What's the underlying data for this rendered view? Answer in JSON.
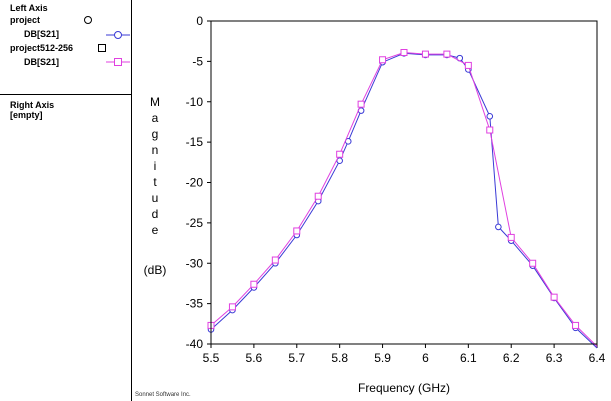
{
  "legend": {
    "left_axis_title": "Left Axis",
    "right_axis_title": "Right Axis",
    "right_axis_status": "[empty]",
    "entries": [
      {
        "project": "project",
        "trace": "DB[S21]",
        "marker": "circle",
        "color": "#3a3ad6"
      },
      {
        "project": "project512-256",
        "trace": "DB[S21]",
        "marker": "square",
        "color": "#e040e0"
      }
    ]
  },
  "credit": "Sonnet Software Inc.",
  "chart_data": {
    "type": "line",
    "xlabel": "Frequency (GHz)",
    "ylabel_letters": [
      "M",
      "a",
      "g",
      "n",
      "i",
      "t",
      "u",
      "d",
      "e"
    ],
    "ylabel_unit": "(dB)",
    "xlim": [
      5.5,
      6.4
    ],
    "ylim": [
      -40,
      0
    ],
    "x_ticks": [
      "5.5",
      "5.6",
      "5.7",
      "5.8",
      "5.9",
      "6",
      "6.1",
      "6.2",
      "6.3",
      "6.4"
    ],
    "y_ticks": [
      "0",
      "-5",
      "-10",
      "-15",
      "-20",
      "-25",
      "-30",
      "-35",
      "-40"
    ],
    "grid": false,
    "series": [
      {
        "name": "DB[S21]",
        "color": "#3a3ad6",
        "marker": "circle",
        "x": [
          5.5,
          5.55,
          5.6,
          5.65,
          5.7,
          5.75,
          5.8,
          5.82,
          5.85,
          5.9,
          5.95,
          6.0,
          6.05,
          6.08,
          6.1,
          6.15,
          6.17,
          6.2,
          6.25,
          6.3,
          6.35,
          6.4
        ],
        "y": [
          -38.2,
          -35.8,
          -33.0,
          -30.0,
          -26.5,
          -22.3,
          -17.3,
          -14.9,
          -11.1,
          -5.1,
          -4.0,
          -4.2,
          -4.2,
          -4.6,
          -6.0,
          -11.8,
          -25.5,
          -27.2,
          -30.3,
          -34.3,
          -38.0,
          -40.5
        ]
      },
      {
        "name": "DB[S21]",
        "color": "#e040e0",
        "marker": "square",
        "x": [
          5.5,
          5.55,
          5.6,
          5.65,
          5.7,
          5.75,
          5.8,
          5.85,
          5.9,
          5.95,
          6.0,
          6.05,
          6.1,
          6.15,
          6.2,
          6.25,
          6.3,
          6.35,
          6.4
        ],
        "y": [
          -37.7,
          -35.4,
          -32.6,
          -29.6,
          -26.0,
          -21.7,
          -16.5,
          -10.3,
          -4.8,
          -3.9,
          -4.1,
          -4.1,
          -5.5,
          -13.5,
          -26.8,
          -30.0,
          -34.2,
          -37.7,
          -40.3
        ]
      }
    ]
  }
}
